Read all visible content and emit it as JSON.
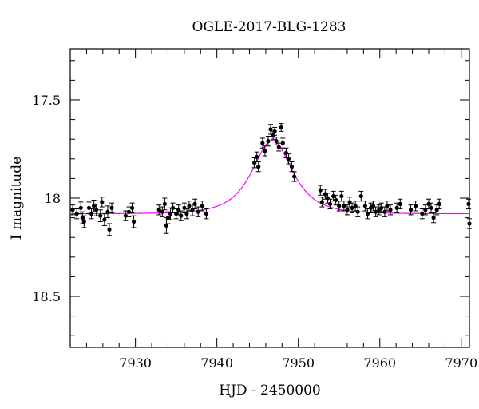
{
  "chart_data": {
    "type": "scatter",
    "title": "OGLE-2017-BLG-1283",
    "xlabel": "HJD - 2450000",
    "ylabel": "I magnitude",
    "xlim": [
      7922,
      7971
    ],
    "ylim": [
      18.76,
      17.24
    ],
    "y_inverted": true,
    "grid": false,
    "x_ticks": [
      7930,
      7940,
      7950,
      7960,
      7970
    ],
    "y_ticks": [
      17.5,
      18,
      18.5
    ],
    "y_tick_labels": [
      "17.5",
      "18",
      "18.5"
    ],
    "series": [
      {
        "kind": "points_with_errorbars",
        "color": "#000000",
        "points": [
          [
            7922.3,
            18.06,
            0.025
          ],
          [
            7922.8,
            18.08,
            0.025
          ],
          [
            7923.3,
            18.05,
            0.03
          ],
          [
            7923.5,
            18.1,
            0.03
          ],
          [
            7923.7,
            18.12,
            0.03
          ],
          [
            7924.3,
            18.05,
            0.03
          ],
          [
            7924.6,
            18.08,
            0.025
          ],
          [
            7924.9,
            18.04,
            0.03
          ],
          [
            7925.2,
            18.06,
            0.03
          ],
          [
            7925.7,
            18.09,
            0.03
          ],
          [
            7925.9,
            18.02,
            0.025
          ],
          [
            7926.2,
            18.11,
            0.03
          ],
          [
            7926.6,
            18.07,
            0.03
          ],
          [
            7926.8,
            18.16,
            0.03
          ],
          [
            7927.1,
            18.05,
            0.025
          ],
          [
            7928.8,
            18.09,
            0.025
          ],
          [
            7929.2,
            18.07,
            0.025
          ],
          [
            7929.6,
            18.05,
            0.025
          ],
          [
            7929.8,
            18.12,
            0.03
          ],
          [
            7932.9,
            18.06,
            0.025
          ],
          [
            7933.3,
            18.07,
            0.025
          ],
          [
            7933.6,
            18.03,
            0.03
          ],
          [
            7933.8,
            18.14,
            0.04
          ],
          [
            7934.0,
            18.1,
            0.03
          ],
          [
            7934.3,
            18.08,
            0.03
          ],
          [
            7934.6,
            18.05,
            0.025
          ],
          [
            7935.0,
            18.08,
            0.025
          ],
          [
            7935.3,
            18.06,
            0.025
          ],
          [
            7935.6,
            18.09,
            0.025
          ],
          [
            7936.0,
            18.05,
            0.025
          ],
          [
            7936.3,
            18.08,
            0.025
          ],
          [
            7936.6,
            18.04,
            0.025
          ],
          [
            7937.0,
            18.06,
            0.03
          ],
          [
            7937.3,
            18.03,
            0.025
          ],
          [
            7937.7,
            18.07,
            0.025
          ],
          [
            7938.2,
            18.04,
            0.025
          ],
          [
            7938.7,
            18.08,
            0.025
          ],
          [
            7944.6,
            17.82,
            0.025
          ],
          [
            7944.9,
            17.79,
            0.025
          ],
          [
            7945.1,
            17.84,
            0.025
          ],
          [
            7945.6,
            17.72,
            0.025
          ],
          [
            7945.9,
            17.76,
            0.025
          ],
          [
            7946.3,
            17.71,
            0.025
          ],
          [
            7946.6,
            17.65,
            0.025
          ],
          [
            7946.9,
            17.68,
            0.02
          ],
          [
            7947.1,
            17.66,
            0.02
          ],
          [
            7947.3,
            17.71,
            0.02
          ],
          [
            7947.6,
            17.74,
            0.02
          ],
          [
            7947.9,
            17.64,
            0.02
          ],
          [
            7948.1,
            17.72,
            0.025
          ],
          [
            7948.5,
            17.77,
            0.025
          ],
          [
            7948.8,
            17.8,
            0.025
          ],
          [
            7949.2,
            17.84,
            0.025
          ],
          [
            7949.5,
            17.89,
            0.025
          ],
          [
            7952.7,
            17.96,
            0.025
          ],
          [
            7952.9,
            18.02,
            0.025
          ],
          [
            7953.3,
            17.98,
            0.025
          ],
          [
            7953.6,
            18.0,
            0.025
          ],
          [
            7953.9,
            18.03,
            0.025
          ],
          [
            7954.3,
            17.99,
            0.025
          ],
          [
            7954.6,
            18.01,
            0.025
          ],
          [
            7955.0,
            18.04,
            0.025
          ],
          [
            7955.3,
            17.99,
            0.025
          ],
          [
            7955.6,
            18.04,
            0.025
          ],
          [
            7956.0,
            18.06,
            0.025
          ],
          [
            7956.3,
            18.02,
            0.025
          ],
          [
            7956.6,
            18.05,
            0.025
          ],
          [
            7957.0,
            18.04,
            0.025
          ],
          [
            7957.3,
            18.07,
            0.025
          ],
          [
            7957.7,
            17.99,
            0.025
          ],
          [
            7958.2,
            18.04,
            0.025
          ],
          [
            7958.5,
            18.08,
            0.025
          ],
          [
            7958.9,
            18.05,
            0.025
          ],
          [
            7959.2,
            18.04,
            0.025
          ],
          [
            7959.5,
            18.07,
            0.025
          ],
          [
            7959.9,
            18.06,
            0.025
          ],
          [
            7960.2,
            18.05,
            0.025
          ],
          [
            7960.6,
            18.07,
            0.025
          ],
          [
            7960.9,
            18.04,
            0.025
          ],
          [
            7961.3,
            18.06,
            0.025
          ],
          [
            7962.1,
            18.05,
            0.025
          ],
          [
            7962.5,
            18.03,
            0.025
          ],
          [
            7963.8,
            18.06,
            0.025
          ],
          [
            7964.4,
            18.04,
            0.025
          ],
          [
            7965.2,
            18.08,
            0.025
          ],
          [
            7965.6,
            18.06,
            0.025
          ],
          [
            7966.0,
            18.03,
            0.025
          ],
          [
            7966.3,
            18.05,
            0.025
          ],
          [
            7966.6,
            18.1,
            0.025
          ],
          [
            7967.0,
            18.06,
            0.025
          ],
          [
            7967.3,
            18.03,
            0.025
          ],
          [
            7970.9,
            18.03,
            0.025
          ],
          [
            7971.0,
            18.13,
            0.025
          ]
        ]
      },
      {
        "kind": "model_curve",
        "color": "#ff00ff",
        "baseline_mag": 18.08,
        "peak_mag": 17.705,
        "t0": 7946.8,
        "tE": 3.1
      }
    ]
  }
}
